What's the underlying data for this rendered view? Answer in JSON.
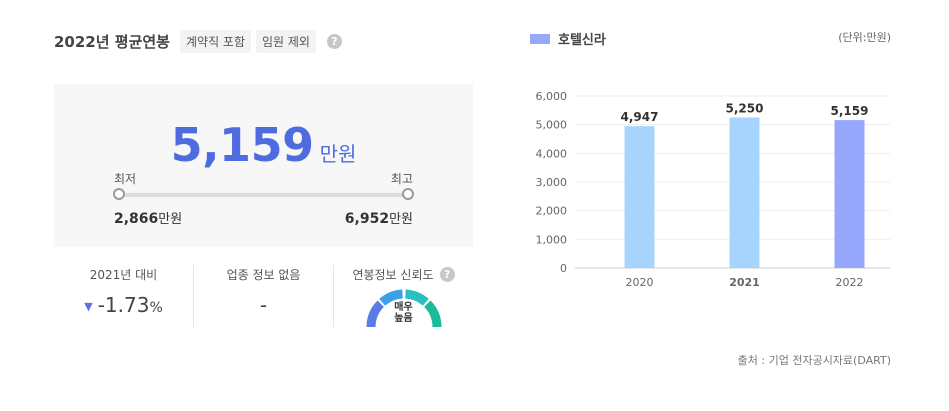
{
  "header": {
    "title": "2022년 평균연봉",
    "tags": [
      "계약직 포함",
      "임원 제외"
    ],
    "help_icon": "question-icon"
  },
  "salary": {
    "value": "5,159",
    "unit": "만원",
    "min_label": "최저",
    "max_label": "최고",
    "min_value": "2,866",
    "max_value": "6,952",
    "value_unit": "만원"
  },
  "stats": {
    "change_label": "2021년 대비",
    "change_value": "-1.73",
    "change_suffix": "%",
    "industry_label": "업종 정보 없음",
    "industry_value": "-",
    "reliability_label": "연봉정보 신뢰도",
    "reliability_text_1": "매우",
    "reliability_text_2": "높음"
  },
  "right": {
    "legend": "호텔신라",
    "unit_note": "(단위:만원)",
    "source": "출처 : 기업 전자공시자료(DART)"
  },
  "colors": {
    "accent": "#4f6be0",
    "bar_past": "#a7d4fd",
    "bar_current": "#97a7fb",
    "gauge_colors": [
      "#5b7be6",
      "#3aa0e8",
      "#2bc0c0",
      "#1abc9c"
    ]
  },
  "chart_data": {
    "type": "bar",
    "categories": [
      "2020",
      "2021",
      "2022"
    ],
    "values": [
      4947,
      5250,
      5159
    ],
    "value_labels": [
      "4,947",
      "5,250",
      "5,159"
    ],
    "highlight_index": 2,
    "bold_category_index": 1,
    "ylim": [
      0,
      6000
    ],
    "yticks": [
      0,
      1000,
      2000,
      3000,
      4000,
      5000,
      6000
    ],
    "ytick_labels": [
      "0",
      "1,000",
      "2,000",
      "3,000",
      "4,000",
      "5,000",
      "6,000"
    ],
    "grid": true,
    "legend_position": "top-left"
  }
}
